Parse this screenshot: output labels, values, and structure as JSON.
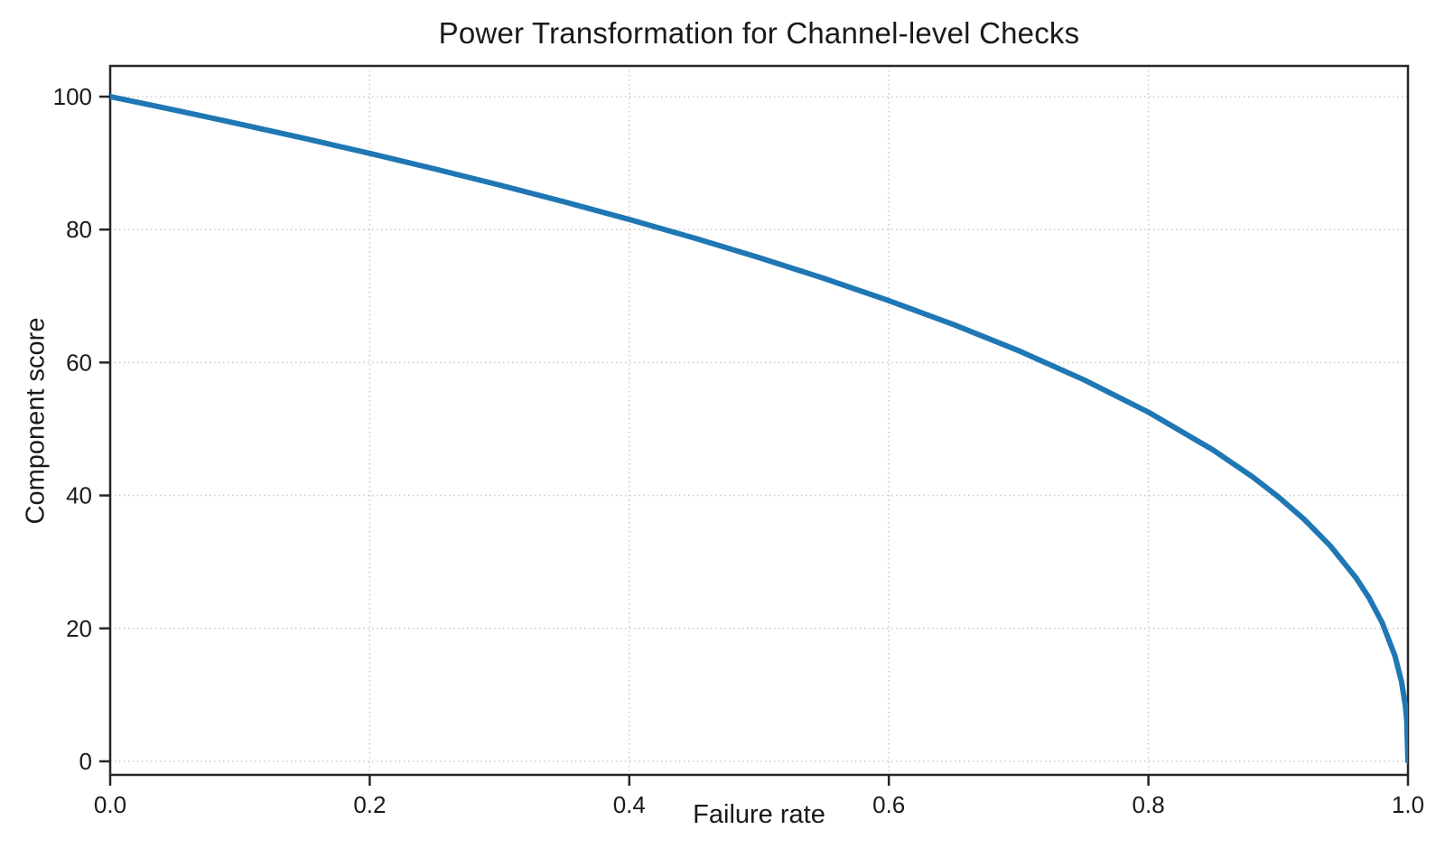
{
  "chart_data": {
    "type": "line",
    "title": "Power Transformation for Channel-level Checks",
    "xlabel": "Failure rate",
    "ylabel": "Component score",
    "xlim": [
      0.0,
      1.0
    ],
    "ylim": [
      0,
      100
    ],
    "xticks": [
      "0.0",
      "0.2",
      "0.4",
      "0.6",
      "0.8",
      "1.0"
    ],
    "xtick_values": [
      0,
      0.2,
      0.4,
      0.6,
      0.8,
      1.0
    ],
    "yticks": [
      "0",
      "20",
      "40",
      "60",
      "80",
      "100"
    ],
    "ytick_values": [
      0,
      20,
      40,
      60,
      80,
      100
    ],
    "grid": "dotted",
    "legend_position": "none",
    "series": [
      {
        "name": "component-score-curve",
        "color": "#1f77b4",
        "line_width": 6,
        "x": [
          0,
          0.02,
          0.05,
          0.1,
          0.15,
          0.2,
          0.25,
          0.3,
          0.35,
          0.4,
          0.45,
          0.5,
          0.55,
          0.6,
          0.65,
          0.7,
          0.75,
          0.8,
          0.85,
          0.88,
          0.9,
          0.92,
          0.94,
          0.96,
          0.97,
          0.98,
          0.99,
          0.995,
          0.998,
          0.999,
          1.0
        ],
        "y": [
          100,
          99.2,
          97.97,
          95.87,
          93.71,
          91.46,
          89.13,
          86.7,
          84.17,
          81.52,
          78.73,
          75.79,
          72.66,
          69.31,
          65.7,
          61.78,
          57.43,
          52.53,
          46.82,
          42.83,
          39.81,
          36.41,
          32.45,
          27.6,
          24.6,
          20.91,
          15.85,
          12.01,
          8.33,
          6.31,
          0
        ]
      }
    ]
  },
  "colors": {
    "background": "#ffffff",
    "line": "#1f77b4",
    "grid": "#cbcbcb",
    "spine": "#262626",
    "text": "#1a1a1a"
  }
}
